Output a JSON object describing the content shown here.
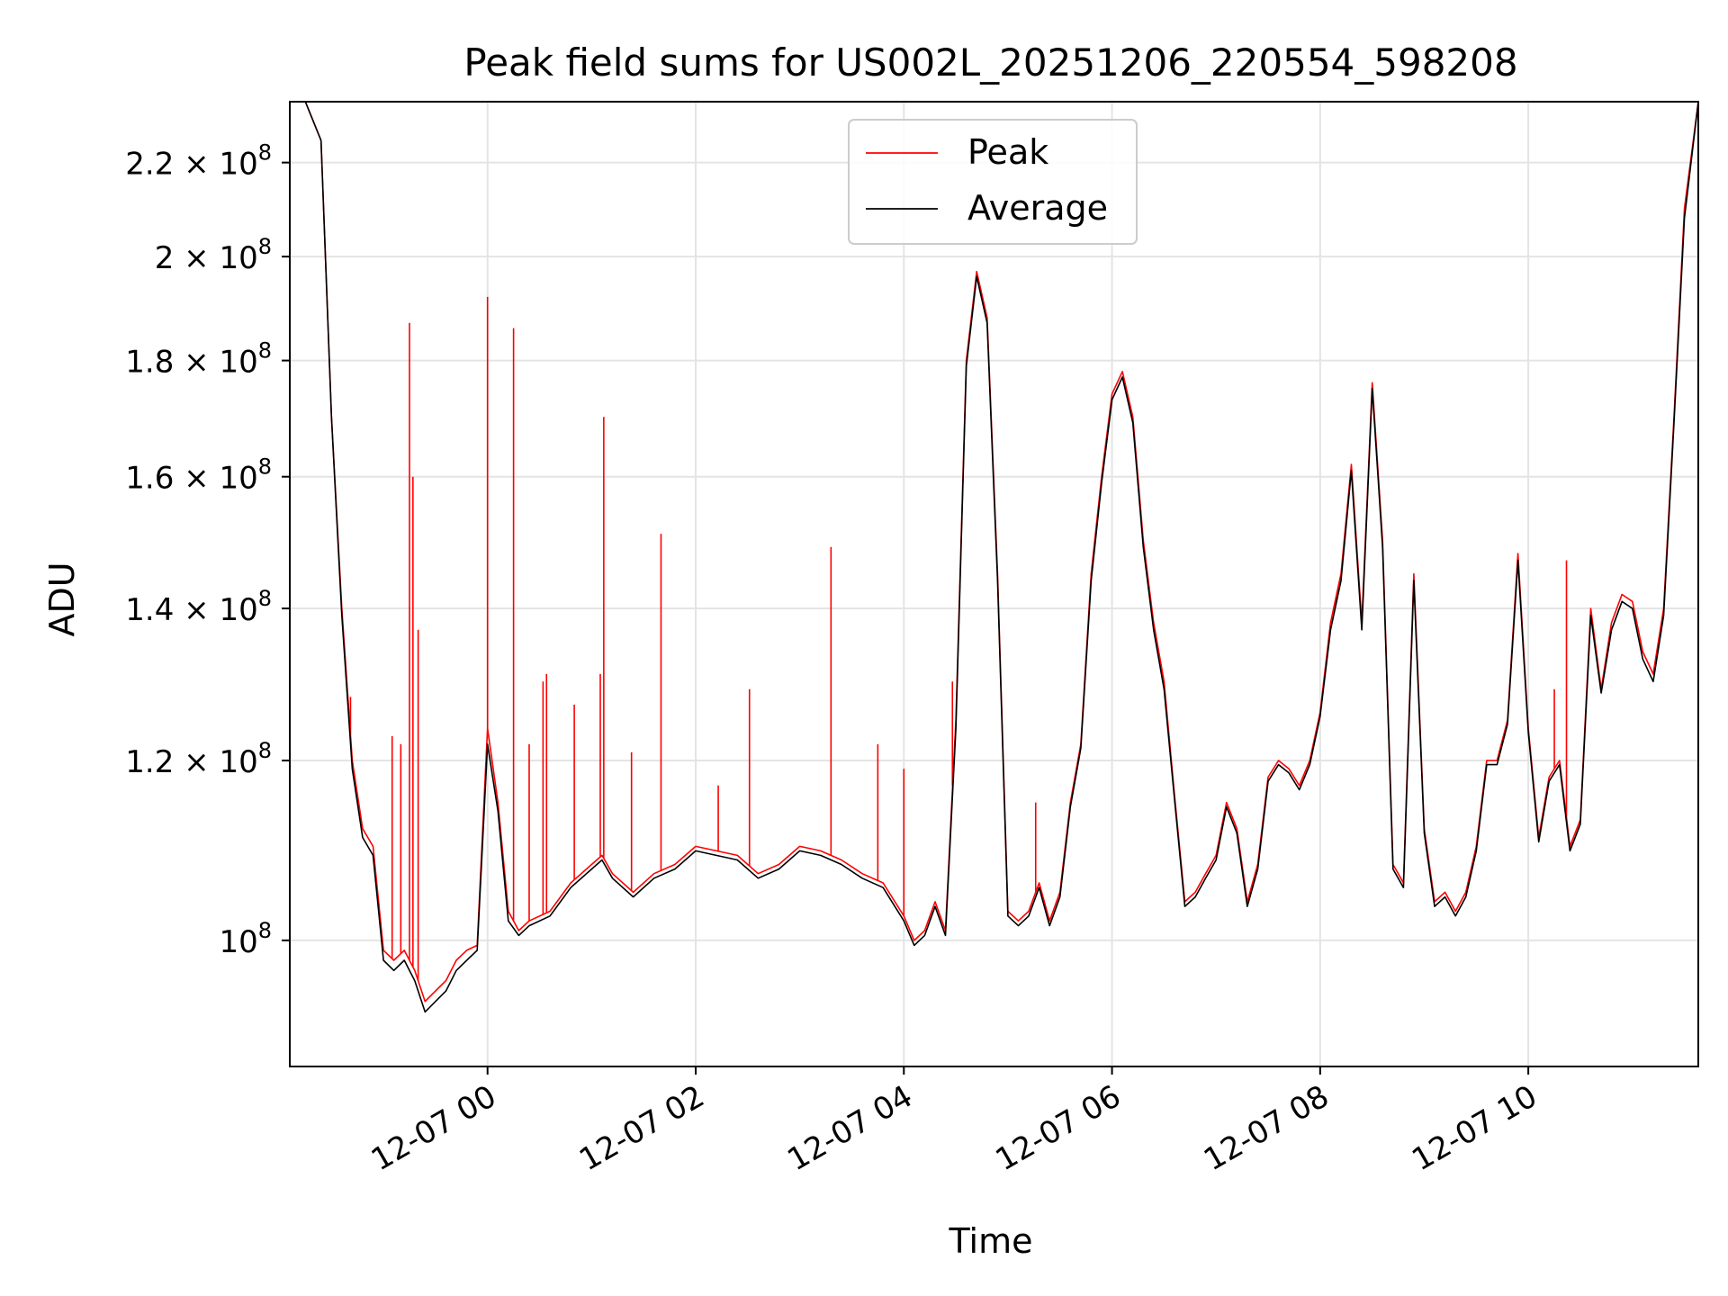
{
  "chart_data": {
    "type": "line",
    "title": "Peak field sums for US002L_20251206_220554_598208",
    "xlabel": "Time",
    "ylabel": "ADU",
    "y_scale": "log",
    "ylim": [
      88000000,
      234000000
    ],
    "xlim": [
      "2025-12-06 22:06",
      "2025-12-07 11:38"
    ],
    "grid": true,
    "legend": "upper center",
    "x_ticks": [
      "12-07 00",
      "12-07 02",
      "12-07 04",
      "12-07 06",
      "12-07 08",
      "12-07 10"
    ],
    "x_tick_times": [
      "2025-12-07 00:00",
      "2025-12-07 02:00",
      "2025-12-07 04:00",
      "2025-12-07 06:00",
      "2025-12-07 08:00",
      "2025-12-07 10:00"
    ],
    "y_ticks": [
      {
        "value": 100000000,
        "mant": "",
        "exp": "8"
      },
      {
        "value": 120000000,
        "mant": "1.2",
        "exp": "8"
      },
      {
        "value": 140000000,
        "mant": "1.4",
        "exp": "8"
      },
      {
        "value": 160000000,
        "mant": "1.6",
        "exp": "8"
      },
      {
        "value": 180000000,
        "mant": "1.8",
        "exp": "8"
      },
      {
        "value": 200000000,
        "mant": "2",
        "exp": "8"
      },
      {
        "value": 220000000,
        "mant": "2.2",
        "exp": "8"
      }
    ],
    "series": [
      {
        "name": "Peak",
        "color": "#ff0000",
        "x": [
          "2025-12-06 22:06",
          "2025-12-06 22:15",
          "2025-12-06 22:24",
          "2025-12-06 22:30",
          "2025-12-06 22:36",
          "2025-12-06 22:42",
          "2025-12-06 22:48",
          "2025-12-06 22:54",
          "2025-12-06 23:00",
          "2025-12-06 23:06",
          "2025-12-06 23:12",
          "2025-12-06 23:18",
          "2025-12-06 23:24",
          "2025-12-06 23:30",
          "2025-12-06 23:36",
          "2025-12-06 23:42",
          "2025-12-06 23:48",
          "2025-12-06 23:54",
          "2025-12-07 00:00",
          "2025-12-07 00:06",
          "2025-12-07 00:12",
          "2025-12-07 00:18",
          "2025-12-07 00:24",
          "2025-12-07 00:36",
          "2025-12-07 00:48",
          "2025-12-07 01:00",
          "2025-12-07 01:06",
          "2025-12-07 01:12",
          "2025-12-07 01:24",
          "2025-12-07 01:36",
          "2025-12-07 01:48",
          "2025-12-07 02:00",
          "2025-12-07 02:24",
          "2025-12-07 02:36",
          "2025-12-07 02:48",
          "2025-12-07 03:00",
          "2025-12-07 03:12",
          "2025-12-07 03:24",
          "2025-12-07 03:36",
          "2025-12-07 03:48",
          "2025-12-07 04:00",
          "2025-12-07 04:06",
          "2025-12-07 04:12",
          "2025-12-07 04:18",
          "2025-12-07 04:24",
          "2025-12-07 04:30",
          "2025-12-07 04:36",
          "2025-12-07 04:42",
          "2025-12-07 04:48",
          "2025-12-07 04:54",
          "2025-12-07 05:00",
          "2025-12-07 05:06",
          "2025-12-07 05:12",
          "2025-12-07 05:18",
          "2025-12-07 05:24",
          "2025-12-07 05:30",
          "2025-12-07 05:36",
          "2025-12-07 05:42",
          "2025-12-07 05:48",
          "2025-12-07 05:54",
          "2025-12-07 06:00",
          "2025-12-07 06:06",
          "2025-12-07 06:12",
          "2025-12-07 06:18",
          "2025-12-07 06:24",
          "2025-12-07 06:30",
          "2025-12-07 06:36",
          "2025-12-07 06:42",
          "2025-12-07 06:48",
          "2025-12-07 06:54",
          "2025-12-07 07:00",
          "2025-12-07 07:06",
          "2025-12-07 07:12",
          "2025-12-07 07:18",
          "2025-12-07 07:24",
          "2025-12-07 07:30",
          "2025-12-07 07:36",
          "2025-12-07 07:42",
          "2025-12-07 07:48",
          "2025-12-07 07:54",
          "2025-12-07 08:00",
          "2025-12-07 08:06",
          "2025-12-07 08:12",
          "2025-12-07 08:18",
          "2025-12-07 08:24",
          "2025-12-07 08:30",
          "2025-12-07 08:36",
          "2025-12-07 08:42",
          "2025-12-07 08:48",
          "2025-12-07 08:54",
          "2025-12-07 09:00",
          "2025-12-07 09:06",
          "2025-12-07 09:12",
          "2025-12-07 09:18",
          "2025-12-07 09:24",
          "2025-12-07 09:30",
          "2025-12-07 09:36",
          "2025-12-07 09:42",
          "2025-12-07 09:48",
          "2025-12-07 09:54",
          "2025-12-07 10:00",
          "2025-12-07 10:06",
          "2025-12-07 10:12",
          "2025-12-07 10:18",
          "2025-12-07 10:24",
          "2025-12-07 10:30",
          "2025-12-07 10:36",
          "2025-12-07 10:42",
          "2025-12-07 10:48",
          "2025-12-07 10:54",
          "2025-12-07 11:00",
          "2025-12-07 11:06",
          "2025-12-07 11:12",
          "2025-12-07 11:18",
          "2025-12-07 11:24",
          "2025-12-07 11:30",
          "2025-12-07 11:38"
        ],
        "y": [
          234000000,
          234000000,
          225000000,
          170000000,
          140000000,
          120000000,
          112000000,
          110000000,
          99000000,
          98000000,
          99000000,
          97000000,
          94000000,
          95000000,
          96000000,
          98000000,
          99000000,
          99500000,
          124000000,
          115000000,
          103000000,
          101000000,
          102000000,
          103000000,
          106000000,
          108000000,
          109000000,
          107000000,
          105000000,
          107000000,
          108000000,
          110000000,
          109000000,
          107000000,
          108000000,
          110000000,
          109500000,
          108500000,
          107000000,
          106000000,
          102500000,
          100000000,
          101000000,
          104000000,
          101000000,
          125000000,
          180000000,
          197000000,
          188000000,
          145000000,
          103000000,
          102000000,
          103000000,
          106000000,
          102000000,
          105000000,
          115000000,
          122000000,
          145000000,
          160000000,
          174000000,
          178000000,
          170000000,
          150000000,
          138000000,
          130000000,
          116000000,
          104000000,
          105000000,
          107000000,
          109000000,
          115000000,
          112000000,
          104000000,
          108000000,
          118000000,
          120000000,
          119000000,
          117000000,
          120000000,
          126000000,
          138000000,
          145000000,
          162000000,
          138000000,
          176000000,
          150000000,
          108000000,
          106000000,
          145000000,
          112000000,
          104000000,
          105000000,
          103000000,
          105000000,
          110000000,
          120000000,
          120000000,
          125000000,
          148000000,
          124000000,
          111000000,
          118000000,
          120000000,
          110000000,
          113000000,
          140000000,
          129000000,
          138000000,
          142000000,
          141000000,
          134000000,
          131000000,
          140000000,
          170000000,
          210000000,
          234000000
        ]
      },
      {
        "name": "Average",
        "color": "#000000",
        "x": [
          "2025-12-06 22:06",
          "2025-12-06 22:15",
          "2025-12-06 22:24",
          "2025-12-06 22:30",
          "2025-12-06 22:36",
          "2025-12-06 22:42",
          "2025-12-06 22:48",
          "2025-12-06 22:54",
          "2025-12-06 23:00",
          "2025-12-06 23:06",
          "2025-12-06 23:12",
          "2025-12-06 23:18",
          "2025-12-06 23:24",
          "2025-12-06 23:30",
          "2025-12-06 23:36",
          "2025-12-06 23:42",
          "2025-12-06 23:48",
          "2025-12-06 23:54",
          "2025-12-07 00:00",
          "2025-12-07 00:06",
          "2025-12-07 00:12",
          "2025-12-07 00:18",
          "2025-12-07 00:24",
          "2025-12-07 00:36",
          "2025-12-07 00:48",
          "2025-12-07 01:00",
          "2025-12-07 01:06",
          "2025-12-07 01:12",
          "2025-12-07 01:24",
          "2025-12-07 01:36",
          "2025-12-07 01:48",
          "2025-12-07 02:00",
          "2025-12-07 02:24",
          "2025-12-07 02:36",
          "2025-12-07 02:48",
          "2025-12-07 03:00",
          "2025-12-07 03:12",
          "2025-12-07 03:24",
          "2025-12-07 03:36",
          "2025-12-07 03:48",
          "2025-12-07 04:00",
          "2025-12-07 04:06",
          "2025-12-07 04:12",
          "2025-12-07 04:18",
          "2025-12-07 04:24",
          "2025-12-07 04:30",
          "2025-12-07 04:36",
          "2025-12-07 04:42",
          "2025-12-07 04:48",
          "2025-12-07 04:54",
          "2025-12-07 05:00",
          "2025-12-07 05:06",
          "2025-12-07 05:12",
          "2025-12-07 05:18",
          "2025-12-07 05:24",
          "2025-12-07 05:30",
          "2025-12-07 05:36",
          "2025-12-07 05:42",
          "2025-12-07 05:48",
          "2025-12-07 05:54",
          "2025-12-07 06:00",
          "2025-12-07 06:06",
          "2025-12-07 06:12",
          "2025-12-07 06:18",
          "2025-12-07 06:24",
          "2025-12-07 06:30",
          "2025-12-07 06:36",
          "2025-12-07 06:42",
          "2025-12-07 06:48",
          "2025-12-07 06:54",
          "2025-12-07 07:00",
          "2025-12-07 07:06",
          "2025-12-07 07:12",
          "2025-12-07 07:18",
          "2025-12-07 07:24",
          "2025-12-07 07:30",
          "2025-12-07 07:36",
          "2025-12-07 07:42",
          "2025-12-07 07:48",
          "2025-12-07 07:54",
          "2025-12-07 08:00",
          "2025-12-07 08:06",
          "2025-12-07 08:12",
          "2025-12-07 08:18",
          "2025-12-07 08:24",
          "2025-12-07 08:30",
          "2025-12-07 08:36",
          "2025-12-07 08:42",
          "2025-12-07 08:48",
          "2025-12-07 08:54",
          "2025-12-07 09:00",
          "2025-12-07 09:06",
          "2025-12-07 09:12",
          "2025-12-07 09:18",
          "2025-12-07 09:24",
          "2025-12-07 09:30",
          "2025-12-07 09:36",
          "2025-12-07 09:42",
          "2025-12-07 09:48",
          "2025-12-07 09:54",
          "2025-12-07 10:00",
          "2025-12-07 10:06",
          "2025-12-07 10:12",
          "2025-12-07 10:18",
          "2025-12-07 10:24",
          "2025-12-07 10:30",
          "2025-12-07 10:36",
          "2025-12-07 10:42",
          "2025-12-07 10:48",
          "2025-12-07 10:54",
          "2025-12-07 11:00",
          "2025-12-07 11:06",
          "2025-12-07 11:12",
          "2025-12-07 11:18",
          "2025-12-07 11:24",
          "2025-12-07 11:30",
          "2025-12-07 11:38"
        ],
        "y": [
          234000000,
          234000000,
          225000000,
          170000000,
          139000000,
          119000000,
          111000000,
          109000000,
          98000000,
          97000000,
          98000000,
          96000000,
          93000000,
          94000000,
          95000000,
          97000000,
          98000000,
          99000000,
          122000000,
          114000000,
          102000000,
          100500000,
          101500000,
          102500000,
          105500000,
          107500000,
          108500000,
          106500000,
          104500000,
          106500000,
          107500000,
          109500000,
          108500000,
          106500000,
          107500000,
          109500000,
          109000000,
          108000000,
          106500000,
          105500000,
          102000000,
          99500000,
          100500000,
          103500000,
          100500000,
          124000000,
          179000000,
          196000000,
          187000000,
          144000000,
          102500000,
          101500000,
          102500000,
          105500000,
          101500000,
          104500000,
          114500000,
          121500000,
          144000000,
          159000000,
          173000000,
          177000000,
          169000000,
          149000000,
          137000000,
          129000000,
          115500000,
          103500000,
          104500000,
          106500000,
          108500000,
          114500000,
          111500000,
          103500000,
          107500000,
          117500000,
          119500000,
          118500000,
          116500000,
          119500000,
          125500000,
          137000000,
          144000000,
          161000000,
          137000000,
          175000000,
          149000000,
          107500000,
          105500000,
          144000000,
          111500000,
          103500000,
          104500000,
          102500000,
          104500000,
          109500000,
          119500000,
          119500000,
          124500000,
          147000000,
          123500000,
          110500000,
          117500000,
          119500000,
          109500000,
          112500000,
          139000000,
          128500000,
          137000000,
          141000000,
          140000000,
          133000000,
          130000000,
          139000000,
          169000000,
          208000000,
          234000000
        ]
      }
    ],
    "spikes": [
      {
        "x": "2025-12-06 22:41",
        "y": 128000000
      },
      {
        "x": "2025-12-06 23:05",
        "y": 123000000
      },
      {
        "x": "2025-12-06 23:10",
        "y": 122000000
      },
      {
        "x": "2025-12-06 23:15",
        "y": 187000000
      },
      {
        "x": "2025-12-06 23:17",
        "y": 160000000
      },
      {
        "x": "2025-12-06 23:20",
        "y": 137000000
      },
      {
        "x": "2025-12-07 00:00",
        "y": 192000000
      },
      {
        "x": "2025-12-07 00:15",
        "y": 186000000
      },
      {
        "x": "2025-12-07 00:24",
        "y": 122000000
      },
      {
        "x": "2025-12-07 00:32",
        "y": 130000000
      },
      {
        "x": "2025-12-07 00:34",
        "y": 131000000
      },
      {
        "x": "2025-12-07 00:50",
        "y": 127000000
      },
      {
        "x": "2025-12-07 01:05",
        "y": 131000000
      },
      {
        "x": "2025-12-07 01:07",
        "y": 170000000
      },
      {
        "x": "2025-12-07 01:23",
        "y": 121000000
      },
      {
        "x": "2025-12-07 01:40",
        "y": 151000000
      },
      {
        "x": "2025-12-07 02:13",
        "y": 117000000
      },
      {
        "x": "2025-12-07 02:31",
        "y": 129000000
      },
      {
        "x": "2025-12-07 03:18",
        "y": 149000000
      },
      {
        "x": "2025-12-07 03:45",
        "y": 122000000
      },
      {
        "x": "2025-12-07 04:00",
        "y": 119000000
      },
      {
        "x": "2025-12-07 04:28",
        "y": 130000000
      },
      {
        "x": "2025-12-07 05:16",
        "y": 115000000
      },
      {
        "x": "2025-12-07 10:15",
        "y": 129000000
      },
      {
        "x": "2025-12-07 10:22",
        "y": 147000000
      }
    ]
  }
}
